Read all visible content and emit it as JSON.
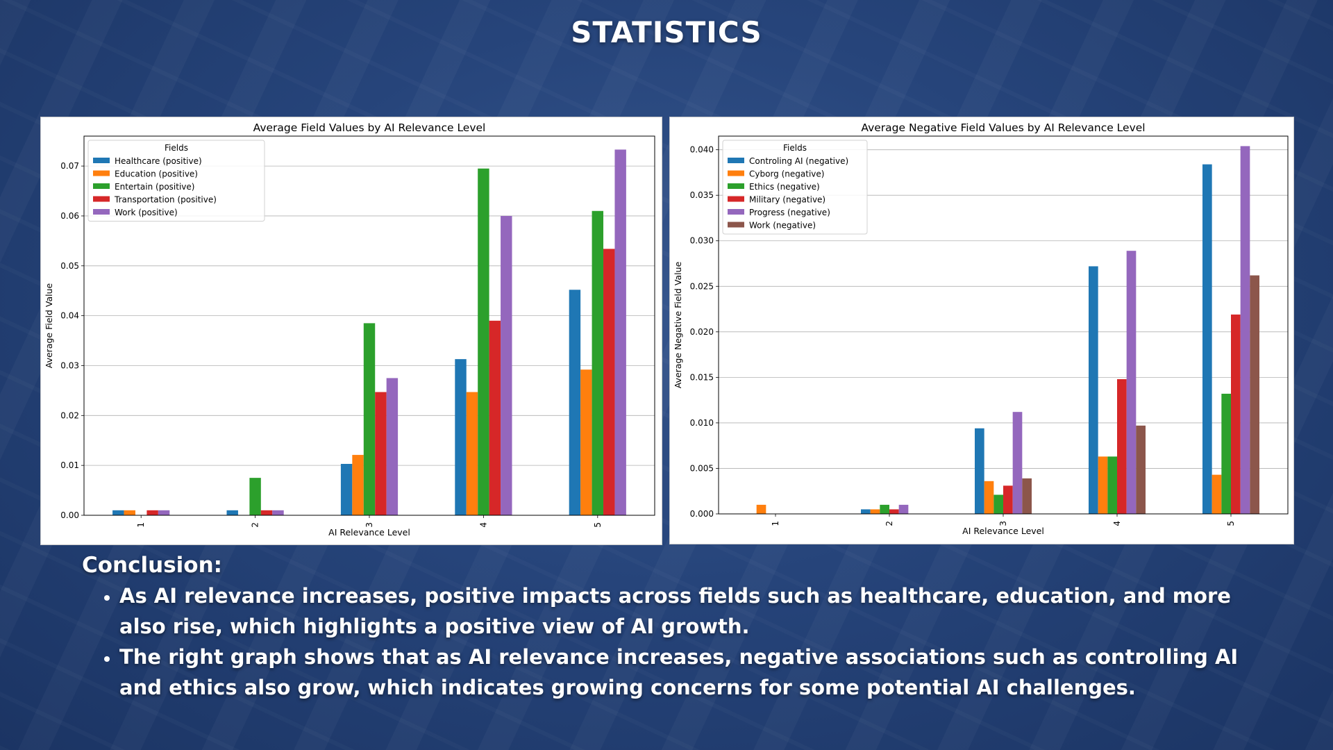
{
  "page": {
    "title": "STATISTICS"
  },
  "conclusion": {
    "heading": "Conclusion:",
    "points": [
      "As AI relevance increases, positive impacts across fields such as healthcare, education, and more also rise, which highlights a positive view of AI growth.",
      "The right graph shows that as AI relevance increases, negative associations such as controlling AI and ethics also grow, which indicates growing concerns for some potential AI challenges."
    ]
  },
  "chart_data": [
    {
      "type": "bar",
      "title": "Average Field Values by AI Relevance Level",
      "xlabel": "AI Relevance Level",
      "ylabel": "Average Field Value",
      "categories": [
        "1",
        "2",
        "3",
        "4",
        "5"
      ],
      "ylim": [
        0,
        0.076
      ],
      "yticks": [
        0.0,
        0.01,
        0.02,
        0.03,
        0.04,
        0.05,
        0.06,
        0.07
      ],
      "ytick_labels": [
        "0.00",
        "0.01",
        "0.02",
        "0.03",
        "0.04",
        "0.05",
        "0.06",
        "0.07"
      ],
      "grid": "horizontal",
      "legend": {
        "title": "Fields",
        "placement": "upper-left"
      },
      "series": [
        {
          "name": "Healthcare (positive)",
          "color": "#1f77b4",
          "values": [
            0.001,
            0.001,
            0.0103,
            0.0313,
            0.0452
          ]
        },
        {
          "name": "Education (positive)",
          "color": "#ff7f0e",
          "values": [
            0.001,
            0.0,
            0.0121,
            0.0247,
            0.0292
          ]
        },
        {
          "name": "Entertain (positive)",
          "color": "#2ca02c",
          "values": [
            0.0,
            0.0075,
            0.0385,
            0.0695,
            0.061
          ]
        },
        {
          "name": "Transportation (positive)",
          "color": "#d62728",
          "values": [
            0.001,
            0.001,
            0.0247,
            0.039,
            0.0534
          ]
        },
        {
          "name": "Work (positive)",
          "color": "#9467bd",
          "values": [
            0.001,
            0.001,
            0.0275,
            0.06,
            0.0733
          ]
        }
      ]
    },
    {
      "type": "bar",
      "title": "Average Negative Field Values by AI Relevance Level",
      "xlabel": "AI Relevance Level",
      "ylabel": "Average Negative Field Value",
      "categories": [
        "1",
        "2",
        "3",
        "4",
        "5"
      ],
      "ylim": [
        0,
        0.0415
      ],
      "yticks": [
        0.0,
        0.005,
        0.01,
        0.015,
        0.02,
        0.025,
        0.03,
        0.035,
        0.04
      ],
      "ytick_labels": [
        "0.000",
        "0.005",
        "0.010",
        "0.015",
        "0.020",
        "0.025",
        "0.030",
        "0.035",
        "0.040"
      ],
      "grid": "horizontal",
      "legend": {
        "title": "Fields",
        "placement": "upper-left"
      },
      "series": [
        {
          "name": "Controling AI (negative)",
          "color": "#1f77b4",
          "values": [
            0.0,
            0.0005,
            0.0094,
            0.0272,
            0.0384
          ]
        },
        {
          "name": "Cyborg (negative)",
          "color": "#ff7f0e",
          "values": [
            0.001,
            0.0005,
            0.0036,
            0.0063,
            0.0043
          ]
        },
        {
          "name": "Ethics (negative)",
          "color": "#2ca02c",
          "values": [
            0.0,
            0.001,
            0.0021,
            0.0063,
            0.0132
          ]
        },
        {
          "name": "Military (negative)",
          "color": "#d62728",
          "values": [
            0.0,
            0.0005,
            0.0031,
            0.0148,
            0.0219
          ]
        },
        {
          "name": "Progress (negative)",
          "color": "#9467bd",
          "values": [
            0.0,
            0.001,
            0.0112,
            0.0289,
            0.0404
          ]
        },
        {
          "name": "Work (negative)",
          "color": "#8c564b",
          "values": [
            0.0,
            0.0,
            0.0039,
            0.0097,
            0.0262
          ]
        }
      ]
    }
  ]
}
